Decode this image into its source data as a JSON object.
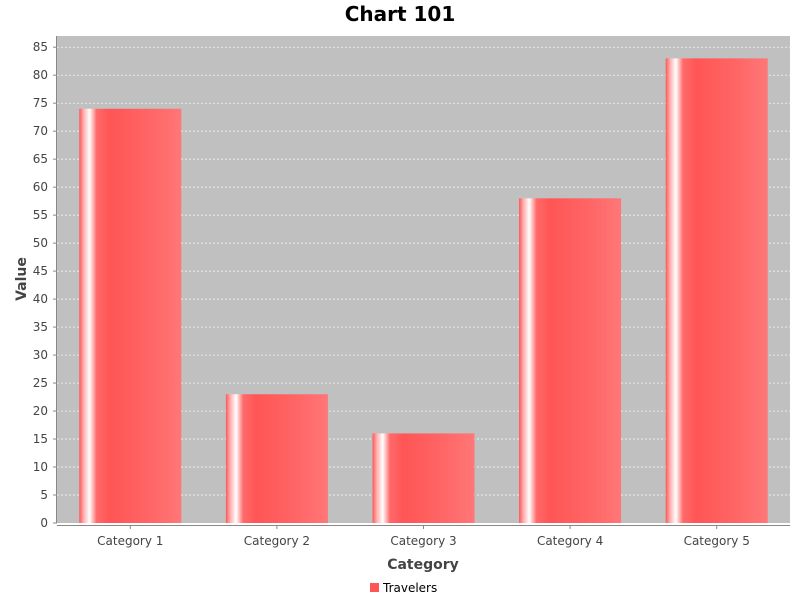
{
  "chart_data": {
    "type": "bar",
    "title": "Chart 101",
    "xlabel": "Category",
    "ylabel": "Value",
    "categories": [
      "Category 1",
      "Category 2",
      "Category 3",
      "Category 4",
      "Category 5"
    ],
    "series": [
      {
        "name": "Travelers",
        "values": [
          74,
          23,
          16,
          58,
          83
        ],
        "color": "#ff5555"
      }
    ],
    "ylim": [
      0,
      87
    ],
    "yticks": [
      0,
      5,
      10,
      15,
      20,
      25,
      30,
      35,
      40,
      45,
      50,
      55,
      60,
      65,
      70,
      75,
      80,
      85
    ],
    "grid": true,
    "legend_position": "bottom",
    "plot_background": "#c0c0c0"
  }
}
